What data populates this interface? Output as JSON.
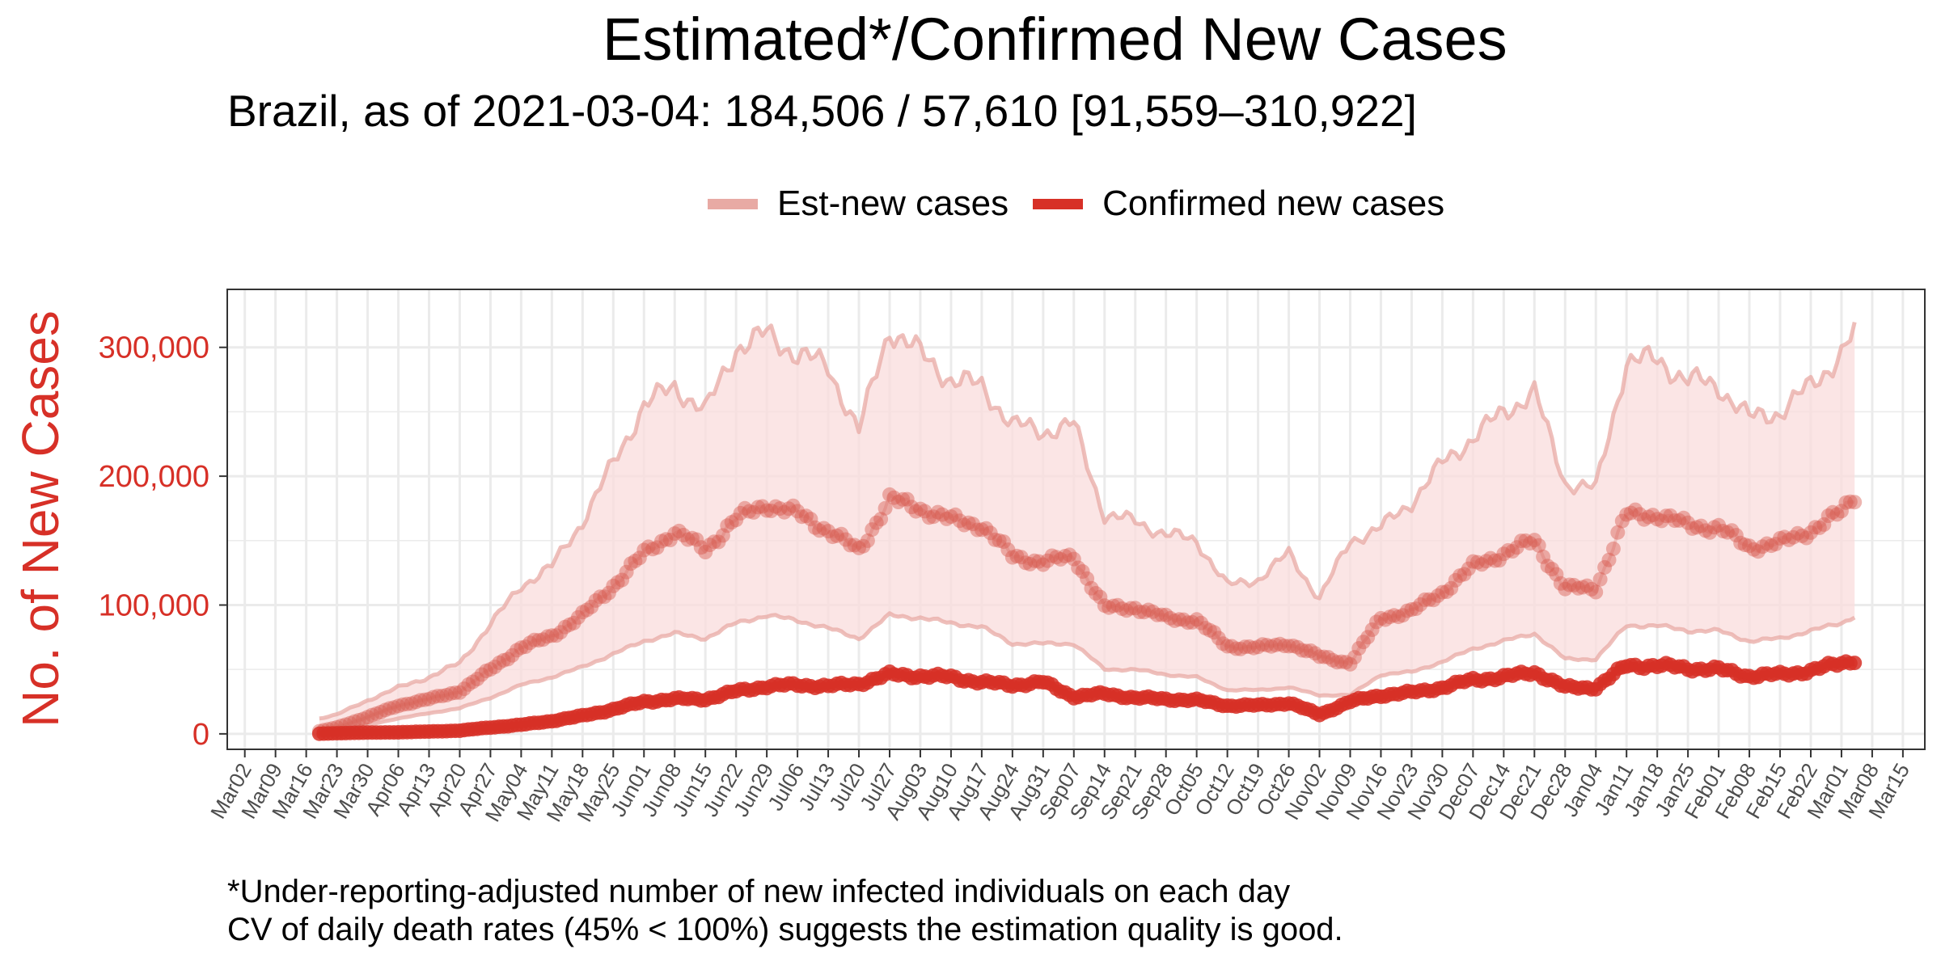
{
  "title": "Estimated*/Confirmed New Cases",
  "subtitle": "Brazil, as of 2021-03-04: 184,506 / 57,610 [91,559–310,922]",
  "captions": [
    "*Under-reporting-adjusted number of new infected individuals on each day",
    "CV of daily death rates (45% < 100%) suggests the estimation quality is good."
  ],
  "colors": {
    "accent": "#d73027",
    "estimate_line": "#e8aaa4",
    "band_fill": "#f9dcdc",
    "confirmed_line": "#d73027",
    "grid": "#ebebeb"
  },
  "chart_data": {
    "type": "line",
    "ylabel": "No. of New Cases",
    "xlabel": "",
    "ylim": [
      -12000,
      345000
    ],
    "xlim": [
      "2020-02-27",
      "2021-03-20"
    ],
    "yticks": [
      0,
      100000,
      200000,
      300000
    ],
    "ytick_labels": [
      "0",
      "100,000",
      "200,000",
      "300,000"
    ],
    "xtick_labels": [
      "Mar02",
      "Mar09",
      "Mar16",
      "Mar23",
      "Mar30",
      "Apr06",
      "Apr13",
      "Apr20",
      "Apr27",
      "May04",
      "May11",
      "May18",
      "May25",
      "Jun01",
      "Jun08",
      "Jun15",
      "Jun22",
      "Jun29",
      "Jul06",
      "Jul13",
      "Jul20",
      "Jul27",
      "Aug03",
      "Aug10",
      "Aug17",
      "Aug24",
      "Aug31",
      "Sep07",
      "Sep14",
      "Sep21",
      "Sep28",
      "Oct05",
      "Oct12",
      "Oct19",
      "Oct26",
      "Nov02",
      "Nov09",
      "Nov16",
      "Nov23",
      "Nov30",
      "Dec07",
      "Dec14",
      "Dec21",
      "Dec28",
      "Jan04",
      "Jan11",
      "Jan18",
      "Jan25",
      "Feb01",
      "Feb08",
      "Feb15",
      "Feb22",
      "Mar01",
      "Mar08",
      "Mar15"
    ],
    "xtick_dates": [
      "2020-03-02",
      "2020-03-09",
      "2020-03-16",
      "2020-03-23",
      "2020-03-30",
      "2020-04-06",
      "2020-04-13",
      "2020-04-20",
      "2020-04-27",
      "2020-05-04",
      "2020-05-11",
      "2020-05-18",
      "2020-05-25",
      "2020-06-01",
      "2020-06-08",
      "2020-06-15",
      "2020-06-22",
      "2020-06-29",
      "2020-07-06",
      "2020-07-13",
      "2020-07-20",
      "2020-07-27",
      "2020-08-03",
      "2020-08-10",
      "2020-08-17",
      "2020-08-24",
      "2020-08-31",
      "2020-09-07",
      "2020-09-14",
      "2020-09-21",
      "2020-09-28",
      "2020-10-05",
      "2020-10-12",
      "2020-10-19",
      "2020-10-26",
      "2020-11-02",
      "2020-11-09",
      "2020-11-16",
      "2020-11-23",
      "2020-11-30",
      "2020-12-07",
      "2020-12-14",
      "2020-12-21",
      "2020-12-28",
      "2021-01-04",
      "2021-01-11",
      "2021-01-18",
      "2021-01-25",
      "2021-02-01",
      "2021-02-08",
      "2021-02-15",
      "2021-02-22",
      "2021-03-01",
      "2021-03-08",
      "2021-03-15"
    ],
    "grid": true,
    "legend_position": "top",
    "series": [
      {
        "name": "Est-new cases",
        "color": "#e8aaa4",
        "x": [
          "2020-03-19",
          "2020-03-23",
          "2020-03-30",
          "2020-04-06",
          "2020-04-13",
          "2020-04-20",
          "2020-04-27",
          "2020-05-04",
          "2020-05-11",
          "2020-05-18",
          "2020-05-25",
          "2020-06-01",
          "2020-06-08",
          "2020-06-15",
          "2020-06-22",
          "2020-06-29",
          "2020-07-06",
          "2020-07-13",
          "2020-07-20",
          "2020-07-27",
          "2020-08-03",
          "2020-08-10",
          "2020-08-17",
          "2020-08-24",
          "2020-08-31",
          "2020-09-07",
          "2020-09-14",
          "2020-09-21",
          "2020-09-28",
          "2020-10-05",
          "2020-10-12",
          "2020-10-19",
          "2020-10-26",
          "2020-11-02",
          "2020-11-09",
          "2020-11-16",
          "2020-11-23",
          "2020-11-30",
          "2020-12-07",
          "2020-12-14",
          "2020-12-21",
          "2020-12-28",
          "2021-01-04",
          "2021-01-11",
          "2021-01-18",
          "2021-01-25",
          "2021-02-01",
          "2021-02-08",
          "2021-02-15",
          "2021-02-22",
          "2021-03-01",
          "2021-03-04"
        ],
        "values": [
          2000,
          5000,
          13000,
          22000,
          27000,
          33000,
          50000,
          67000,
          76000,
          92000,
          115000,
          140000,
          157000,
          143000,
          167000,
          178000,
          171000,
          158000,
          142000,
          182000,
          175000,
          166000,
          162000,
          138000,
          133000,
          138000,
          98000,
          98000,
          90000,
          88000,
          68000,
          67000,
          70000,
          60000,
          55000,
          90000,
          95000,
          110000,
          130000,
          140000,
          150000,
          113000,
          113000,
          170000,
          170000,
          162000,
          160000,
          145000,
          148000,
          158000,
          172000,
          184506
        ],
        "lower": [
          1000,
          2500,
          7000,
          12000,
          16000,
          20000,
          28000,
          38000,
          44000,
          52000,
          62000,
          72000,
          78000,
          74000,
          86000,
          92000,
          88000,
          82000,
          74000,
          92000,
          90000,
          86000,
          83000,
          70000,
          70000,
          70000,
          50000,
          50000,
          46000,
          44000,
          34000,
          34000,
          36000,
          30000,
          30000,
          46000,
          48000,
          56000,
          66000,
          72000,
          78000,
          58000,
          58000,
          84000,
          84000,
          80000,
          80000,
          72000,
          74000,
          80000,
          86000,
          91559
        ],
        "upper": [
          12000,
          15000,
          26000,
          36000,
          44000,
          55000,
          85000,
          115000,
          130000,
          165000,
          210000,
          255000,
          270000,
          250000,
          300000,
          310000,
          295000,
          285000,
          235000,
          315000,
          295000,
          275000,
          270000,
          240000,
          235000,
          240000,
          170000,
          165000,
          155000,
          150000,
          115000,
          120000,
          140000,
          105000,
          150000,
          160000,
          180000,
          210000,
          230000,
          250000,
          265000,
          195000,
          190000,
          290000,
          290000,
          275000,
          270000,
          245000,
          250000,
          270000,
          295000,
          310922
        ]
      },
      {
        "name": "Confirmed new cases",
        "color": "#d73027",
        "x": [
          "2020-03-19",
          "2020-03-23",
          "2020-03-30",
          "2020-04-06",
          "2020-04-13",
          "2020-04-20",
          "2020-04-27",
          "2020-05-04",
          "2020-05-11",
          "2020-05-18",
          "2020-05-25",
          "2020-06-01",
          "2020-06-08",
          "2020-06-15",
          "2020-06-22",
          "2020-06-29",
          "2020-07-06",
          "2020-07-13",
          "2020-07-20",
          "2020-07-27",
          "2020-08-03",
          "2020-08-10",
          "2020-08-17",
          "2020-08-24",
          "2020-08-31",
          "2020-09-07",
          "2020-09-14",
          "2020-09-21",
          "2020-09-28",
          "2020-10-05",
          "2020-10-12",
          "2020-10-19",
          "2020-10-26",
          "2020-11-02",
          "2020-11-09",
          "2020-11-16",
          "2020-11-23",
          "2020-11-30",
          "2020-12-07",
          "2020-12-14",
          "2020-12-21",
          "2020-12-28",
          "2021-01-04",
          "2021-01-11",
          "2021-01-18",
          "2021-01-25",
          "2021-02-01",
          "2021-02-08",
          "2021-02-15",
          "2021-02-22",
          "2021-03-01",
          "2021-03-04"
        ],
        "values": [
          100,
          500,
          1000,
          1200,
          1800,
          2500,
          5000,
          7000,
          10000,
          14000,
          19000,
          25000,
          27000,
          27000,
          33000,
          37000,
          38000,
          37000,
          39000,
          46000,
          45000,
          44000,
          40000,
          38000,
          40000,
          29000,
          31000,
          28000,
          27000,
          26000,
          22000,
          22000,
          24000,
          15000,
          25000,
          30000,
          32000,
          36000,
          42000,
          44000,
          48000,
          36000,
          36000,
          53000,
          53000,
          51000,
          50000,
          45000,
          46000,
          49000,
          55000,
          57610
        ]
      }
    ]
  }
}
